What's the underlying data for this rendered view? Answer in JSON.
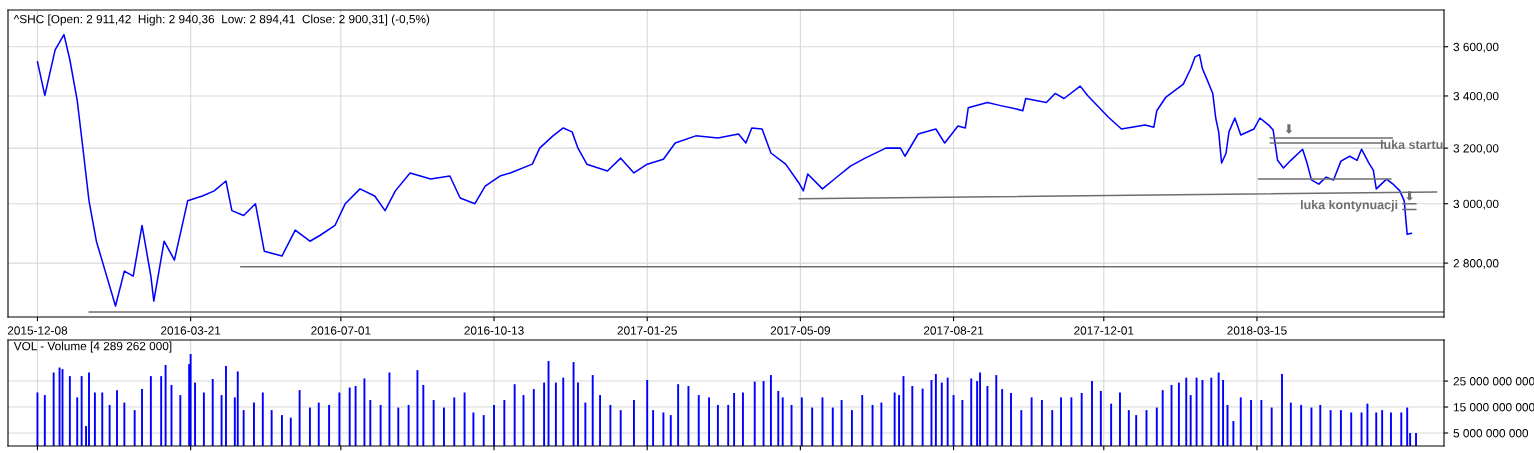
{
  "chart_data": [
    {
      "type": "line",
      "title": "^SHC [Open: 2 911,42  High: 2 940,36  Low: 2 894,41  Close: 2 900,31] (-0,5%)",
      "x": [
        "2015-12-08",
        "2015-12-13",
        "2015-12-20",
        "2015-12-26",
        "2015-12-30",
        "2016-01-04",
        "2016-01-08",
        "2016-01-12",
        "2016-01-17",
        "2016-01-23",
        "2016-01-30",
        "2016-02-05",
        "2016-02-11",
        "2016-02-17",
        "2016-02-23",
        "2016-02-25",
        "2016-03-03",
        "2016-03-10",
        "2016-03-19",
        "2016-03-29",
        "2016-04-06",
        "2016-04-14",
        "2016-04-18",
        "2016-04-26",
        "2016-05-04",
        "2016-05-10",
        "2016-05-22",
        "2016-05-31",
        "2016-06-10",
        "2016-06-17",
        "2016-06-27",
        "2016-07-04",
        "2016-07-14",
        "2016-07-24",
        "2016-07-31",
        "2016-08-07",
        "2016-08-17",
        "2016-08-31",
        "2016-09-13",
        "2016-09-20",
        "2016-09-30",
        "2016-10-07",
        "2016-10-17",
        "2016-10-24",
        "2016-11-08",
        "2016-11-13",
        "2016-11-22",
        "2016-11-29",
        "2016-12-05",
        "2016-12-09",
        "2016-12-15",
        "2016-12-29",
        "2017-01-07",
        "2017-01-16",
        "2017-01-25",
        "2017-02-05",
        "2017-02-13",
        "2017-02-27",
        "2017-03-14",
        "2017-03-28",
        "2017-04-02",
        "2017-04-06",
        "2017-04-13",
        "2017-04-19",
        "2017-04-29",
        "2017-05-08",
        "2017-05-11",
        "2017-05-14",
        "2017-05-24",
        "2017-06-02",
        "2017-06-12",
        "2017-06-22",
        "2017-07-06",
        "2017-07-16",
        "2017-07-19",
        "2017-07-28",
        "2017-08-09",
        "2017-08-15",
        "2017-08-24",
        "2017-08-29",
        "2017-08-31",
        "2017-09-13",
        "2017-09-22",
        "2017-10-02",
        "2017-10-07",
        "2017-10-09",
        "2017-10-23",
        "2017-10-29",
        "2017-11-04",
        "2017-11-15",
        "2017-11-20",
        "2017-11-28",
        "2017-12-04",
        "2017-12-13",
        "2017-12-29",
        "2018-01-04",
        "2018-01-06",
        "2018-01-12",
        "2018-01-24",
        "2018-01-29",
        "2018-02-01",
        "2018-02-04",
        "2018-02-06",
        "2018-02-09",
        "2018-02-13",
        "2018-02-15",
        "2018-02-17",
        "2018-02-19",
        "2018-02-22",
        "2018-02-24",
        "2018-02-28",
        "2018-03-04",
        "2018-03-13",
        "2018-03-17",
        "2018-03-23",
        "2018-03-26",
        "2018-03-29",
        "2018-04-02",
        "2018-04-07",
        "2018-04-15",
        "2018-04-18",
        "2018-04-21",
        "2018-04-26",
        "2018-05-01",
        "2018-05-06",
        "2018-05-11",
        "2018-05-17",
        "2018-05-22",
        "2018-05-25",
        "2018-05-30",
        "2018-06-02",
        "2018-06-04",
        "2018-06-11",
        "2018-06-16",
        "2018-06-20",
        "2018-06-23",
        "2018-06-25",
        "2018-06-28"
      ],
      "series": [
        {
          "color": "#0000ff",
          "values": [
            3538,
            3402,
            3587,
            3651,
            3546,
            3382,
            3193,
            3010,
            2872,
            2774,
            2664,
            2774,
            2758,
            2925,
            2758,
            2679,
            2872,
            2810,
            3010,
            3027,
            3045,
            3080,
            2976,
            2959,
            3000,
            2839,
            2823,
            2909,
            2872,
            2892,
            2925,
            3000,
            3052,
            3027,
            2976,
            3045,
            3109,
            3087,
            3098,
            3020,
            3000,
            3062,
            3098,
            3109,
            3141,
            3200,
            3246,
            3276,
            3261,
            3200,
            3141,
            3116,
            3163,
            3109,
            3141,
            3159,
            3219,
            3246,
            3238,
            3253,
            3219,
            3276,
            3272,
            3182,
            3141,
            3073,
            3045,
            3105,
            3052,
            3091,
            3134,
            3163,
            3200,
            3200,
            3170,
            3253,
            3272,
            3219,
            3283,
            3276,
            3354,
            3374,
            3362,
            3350,
            3342,
            3390,
            3374,
            3410,
            3390,
            3439,
            3402,
            3354,
            3318,
            3272,
            3287,
            3279,
            3342,
            3394,
            3447,
            3509,
            3558,
            3567,
            3509,
            3467,
            3410,
            3314,
            3261,
            3145,
            3181,
            3261,
            3314,
            3249,
            3272,
            3314,
            3287,
            3268,
            3155,
            3127,
            3155,
            3196,
            3145,
            3084,
            3069,
            3094,
            3084,
            3152,
            3170,
            3155,
            3196,
            3145,
            3119,
            3052,
            3087,
            3066,
            3045,
            3010,
            2895,
            2899
          ]
        },
        {
          "type": "line",
          "color": "#6e6e6e",
          "x": [
            "2016-01-12",
            "2018-07-20"
          ],
          "values": [
            2645,
            2645
          ]
        },
        {
          "type": "line",
          "color": "#6e6e6e",
          "x": [
            "2016-04-24",
            "2018-07-20"
          ],
          "values": [
            2788,
            2788
          ]
        },
        {
          "type": "line",
          "color": "#6e6e6e",
          "x": [
            "2017-05-08",
            "2018-07-15"
          ],
          "values": [
            3017,
            3041
          ]
        },
        {
          "type": "line",
          "color": "#6e6e6e",
          "x": [
            "2018-03-24",
            "2018-06-15"
          ],
          "values": [
            3238,
            3238
          ]
        },
        {
          "type": "line",
          "color": "#6e6e6e",
          "x": [
            "2018-03-24",
            "2018-06-10"
          ],
          "values": [
            3219,
            3219
          ]
        },
        {
          "type": "line",
          "color": "#6e6e6e",
          "x": [
            "2018-03-16",
            "2018-06-14"
          ],
          "values": [
            3087,
            3087
          ]
        },
        {
          "type": "line",
          "color": "#6e6e6e",
          "x": [
            "2018-06-22",
            "2018-07-01"
          ],
          "values": [
            3000,
            3000
          ]
        },
        {
          "type": "line",
          "color": "#6e6e6e",
          "x": [
            "2018-06-22",
            "2018-07-01"
          ],
          "values": [
            2980,
            2980
          ]
        }
      ],
      "annotations": [
        "⬇",
        "⬇",
        "luka startu",
        "luka kontynuacji"
      ],
      "xlim": [
        "2015-11-18",
        "2018-07-20"
      ],
      "xticks": [
        "2015-12-08",
        "2016-03-21",
        "2016-07-01",
        "2016-10-13",
        "2017-01-25",
        "2017-05-09",
        "2017-08-21",
        "2017-12-01",
        "2018-03-15"
      ],
      "log": true,
      "ylim": [
        2630,
        3757
      ],
      "yticks": [
        {
          "value": 2800,
          "label": "2 800,00"
        },
        {
          "value": 3000,
          "label": "3 000,00"
        },
        {
          "value": 3200,
          "label": "3 200,00"
        },
        {
          "value": 3400,
          "label": "3 400,00"
        },
        {
          "value": 3600,
          "label": "3 600,00"
        }
      ],
      "grid": true
    },
    {
      "type": "bar",
      "title": "VOL - Volume [4 289 262 000]",
      "color": "#0000ff",
      "x": [
        "2015-12-08",
        "2015-12-13",
        "2015-12-19",
        "2015-12-23",
        "2015-12-25",
        "2015-12-30",
        "2016-01-04",
        "2016-01-07",
        "2016-01-10",
        "2016-01-12",
        "2016-01-16",
        "2016-01-21",
        "2016-01-26",
        "2016-01-31",
        "2016-02-05",
        "2016-02-12",
        "2016-02-17",
        "2016-02-23",
        "2016-03-01",
        "2016-03-04",
        "2016-03-08",
        "2016-03-14",
        "2016-03-20",
        "2016-03-21",
        "2016-03-24",
        "2016-03-30",
        "2016-04-05",
        "2016-04-11",
        "2016-04-14",
        "2016-04-20",
        "2016-04-22",
        "2016-04-26",
        "2016-05-03",
        "2016-05-09",
        "2016-05-15",
        "2016-05-22",
        "2016-05-28",
        "2016-06-03",
        "2016-06-10",
        "2016-06-16",
        "2016-06-23",
        "2016-06-30",
        "2016-07-07",
        "2016-07-11",
        "2016-07-17",
        "2016-07-21",
        "2016-07-28",
        "2016-08-03",
        "2016-08-09",
        "2016-08-16",
        "2016-08-22",
        "2016-08-26",
        "2016-09-02",
        "2016-09-09",
        "2016-09-16",
        "2016-09-23",
        "2016-09-29",
        "2016-10-06",
        "2016-10-13",
        "2016-10-20",
        "2016-10-27",
        "2016-11-02",
        "2016-11-09",
        "2016-11-16",
        "2016-11-19",
        "2016-11-24",
        "2016-11-29",
        "2016-12-06",
        "2016-12-09",
        "2016-12-14",
        "2016-12-19",
        "2016-12-24",
        "2016-12-31",
        "2017-01-07",
        "2017-01-16",
        "2017-01-25",
        "2017-01-29",
        "2017-02-05",
        "2017-02-10",
        "2017-02-15",
        "2017-02-22",
        "2017-03-01",
        "2017-03-08",
        "2017-03-14",
        "2017-03-21",
        "2017-03-25",
        "2017-03-31",
        "2017-04-08",
        "2017-04-14",
        "2017-04-19",
        "2017-04-24",
        "2017-04-27",
        "2017-05-03",
        "2017-05-10",
        "2017-05-17",
        "2017-05-24",
        "2017-05-31",
        "2017-06-06",
        "2017-06-13",
        "2017-06-20",
        "2017-06-27",
        "2017-07-03",
        "2017-07-12",
        "2017-07-15",
        "2017-07-18",
        "2017-07-24",
        "2017-07-31",
        "2017-08-06",
        "2017-08-09",
        "2017-08-13",
        "2017-08-17",
        "2017-08-21",
        "2017-08-27",
        "2017-09-02",
        "2017-09-06",
        "2017-09-08",
        "2017-09-13",
        "2017-09-19",
        "2017-09-23",
        "2017-09-29",
        "2017-10-06",
        "2017-10-13",
        "2017-10-20",
        "2017-10-27",
        "2017-11-02",
        "2017-11-09",
        "2017-11-16",
        "2017-11-23",
        "2017-11-29",
        "2017-12-06",
        "2017-12-12",
        "2017-12-18",
        "2017-12-23",
        "2017-12-30",
        "2018-01-06",
        "2018-01-10",
        "2018-01-16",
        "2018-01-21",
        "2018-01-26",
        "2018-01-29",
        "2018-02-02",
        "2018-02-06",
        "2018-02-12",
        "2018-02-17",
        "2018-02-20",
        "2018-02-23",
        "2018-02-27",
        "2018-03-04",
        "2018-03-11",
        "2018-03-18",
        "2018-03-25",
        "2018-04-01",
        "2018-04-07",
        "2018-04-14",
        "2018-04-21",
        "2018-04-27",
        "2018-05-04",
        "2018-05-11",
        "2018-05-18",
        "2018-05-25",
        "2018-05-29",
        "2018-06-04",
        "2018-06-08",
        "2018-06-14",
        "2018-06-21",
        "2018-06-25",
        "2018-06-27",
        "2018-07-01"
      ],
      "values": [
        20600000000.0,
        19600000000.0,
        28300000000.0,
        30200000000.0,
        29600000000.0,
        26900000000.0,
        18700000000.0,
        26900000000.0,
        7700000000.0,
        28300000000.0,
        20600000000.0,
        20600000000.0,
        15800000000.0,
        21500000000.0,
        16700000000.0,
        13800000000.0,
        21900000000.0,
        26900000000.0,
        26900000000.0,
        31200000000.0,
        23500000000.0,
        19600000000.0,
        31500000000.0,
        35400000000.0,
        24400000000.0,
        20600000000.0,
        25800000000.0,
        19600000000.0,
        30800000000.0,
        18700000000.0,
        28700000000.0,
        13800000000.0,
        16700000000.0,
        20600000000.0,
        13800000000.0,
        11900000000.0,
        10900000000.0,
        21500000000.0,
        14800000000.0,
        16700000000.0,
        15800000000.0,
        20600000000.0,
        22500000000.0,
        23100000000.0,
        26000000000.0,
        17700000000.0,
        15800000000.0,
        28300000000.0,
        14800000000.0,
        15800000000.0,
        29200000000.0,
        23500000000.0,
        17700000000.0,
        14800000000.0,
        18700000000.0,
        20600000000.0,
        12900000000.0,
        11900000000.0,
        15800000000.0,
        17700000000.0,
        23800000000.0,
        19600000000.0,
        21900000000.0,
        24400000000.0,
        32700000000.0,
        24400000000.0,
        26300000000.0,
        32300000000.0,
        24400000000.0,
        16700000000.0,
        27300000000.0,
        19600000000.0,
        15800000000.0,
        13800000000.0,
        17700000000.0,
        25400000000.0,
        13800000000.0,
        12900000000.0,
        11900000000.0,
        23800000000.0,
        23100000000.0,
        19600000000.0,
        18700000000.0,
        15800000000.0,
        15800000000.0,
        20400000000.0,
        20600000000.0,
        24800000000.0,
        25000000000.0,
        27300000000.0,
        21200000000.0,
        18700000000.0,
        15800000000.0,
        18700000000.0,
        14800000000.0,
        18700000000.0,
        14800000000.0,
        17700000000.0,
        13800000000.0,
        19600000000.0,
        15800000000.0,
        16700000000.0,
        20600000000.0,
        19600000000.0,
        26900000000.0,
        23100000000.0,
        22100000000.0,
        25400000000.0,
        27700000000.0,
        24400000000.0,
        26300000000.0,
        19600000000.0,
        17700000000.0,
        26000000000.0,
        25000000000.0,
        28300000000.0,
        23100000000.0,
        27300000000.0,
        21900000000.0,
        20400000000.0,
        13800000000.0,
        18700000000.0,
        17700000000.0,
        13800000000.0,
        18700000000.0,
        18700000000.0,
        20400000000.0,
        25000000000.0,
        21200000000.0,
        16300000000.0,
        20600000000.0,
        13800000000.0,
        11900000000.0,
        13800000000.0,
        14800000000.0,
        21500000000.0,
        23500000000.0,
        24400000000.0,
        26300000000.0,
        19600000000.0,
        26300000000.0,
        25400000000.0,
        26300000000.0,
        28300000000.0,
        25400000000.0,
        15800000000.0,
        9600000000.0,
        18700000000.0,
        17700000000.0,
        17700000000.0,
        14800000000.0,
        27700000000.0,
        16700000000.0,
        15800000000.0,
        14800000000.0,
        15800000000.0,
        13800000000.0,
        13800000000.0,
        12900000000.0,
        12900000000.0,
        16300000000.0,
        12900000000.0,
        13800000000.0,
        12900000000.0,
        12900000000.0,
        14800000000.0,
        5000000000.0,
        5000000000.0
      ],
      "xlim": [
        "2015-11-18",
        "2018-07-20"
      ],
      "xticks": [
        {
          "value": "2015-12-08",
          "label": null
        },
        {
          "value": "2016-03-21",
          "label": null
        },
        {
          "value": "2016-07-01",
          "label": null
        },
        {
          "value": "2016-10-13",
          "label": null
        },
        {
          "value": "2017-01-25",
          "label": null
        },
        {
          "value": "2017-05-09",
          "label": null
        },
        {
          "value": "2017-08-21",
          "label": null
        },
        {
          "value": "2017-12-01",
          "label": null
        },
        {
          "value": "2018-03-15",
          "label": null
        }
      ],
      "ylim": [
        0,
        40800000000.0
      ],
      "yticks": [
        {
          "value": 5000000000.0,
          "label": "5 000 000 000"
        },
        {
          "value": 15000000000.0,
          "label": "15 000 000 000"
        },
        {
          "value": 25000000000.0,
          "label": "25 000 000 000"
        }
      ],
      "grid": true,
      "tick_labels": "y"
    }
  ]
}
